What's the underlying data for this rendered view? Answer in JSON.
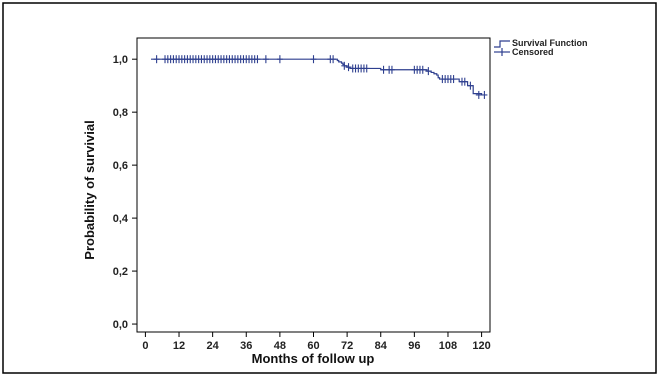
{
  "chart_data": {
    "type": "line",
    "xlabel": "Months of follow up",
    "ylabel": "Probability of survivial",
    "xlim": [
      -3,
      123
    ],
    "ylim": [
      -0.03,
      1.08
    ],
    "x_ticks": [
      "0",
      "12",
      "24",
      "36",
      "48",
      "60",
      "72",
      "84",
      "96",
      "108",
      "120"
    ],
    "x_tick_values": [
      0,
      12,
      24,
      36,
      48,
      60,
      72,
      84,
      96,
      108,
      120
    ],
    "y_ticks": [
      "0,0",
      "0,2",
      "0,4",
      "0,6",
      "0,8",
      "1,0"
    ],
    "y_tick_values": [
      0.0,
      0.2,
      0.4,
      0.6,
      0.8,
      1.0
    ],
    "legend": [
      {
        "label": "Survival Function",
        "symbol": "step"
      },
      {
        "label": "Censored",
        "symbol": "plus"
      }
    ],
    "legend_position": "top-right, outside plot",
    "color": "#2e3f8f",
    "series": [
      {
        "name": "Survival Function",
        "step": [
          [
            2,
            1.0
          ],
          [
            68,
            1.0
          ],
          [
            68.5,
            0.995
          ],
          [
            69,
            0.99
          ],
          [
            70,
            0.985
          ],
          [
            70.5,
            0.98
          ],
          [
            71,
            0.975
          ],
          [
            72,
            0.97
          ],
          [
            73,
            0.965
          ],
          [
            84,
            0.96
          ],
          [
            100.5,
            0.955
          ],
          [
            102,
            0.95
          ],
          [
            103,
            0.945
          ],
          [
            104,
            0.94
          ],
          [
            104.5,
            0.93
          ],
          [
            105,
            0.925
          ],
          [
            112,
            0.915
          ],
          [
            115,
            0.9
          ],
          [
            117,
            0.87
          ],
          [
            120,
            0.865
          ]
        ]
      },
      {
        "name": "Censored",
        "points": [
          [
            4,
            1.0
          ],
          [
            7,
            1.0
          ],
          [
            8,
            1.0
          ],
          [
            9,
            1.0
          ],
          [
            10,
            1.0
          ],
          [
            11,
            1.0
          ],
          [
            12,
            1.0
          ],
          [
            13,
            1.0
          ],
          [
            14,
            1.0
          ],
          [
            15,
            1.0
          ],
          [
            16,
            1.0
          ],
          [
            17,
            1.0
          ],
          [
            18,
            1.0
          ],
          [
            19,
            1.0
          ],
          [
            20,
            1.0
          ],
          [
            21,
            1.0
          ],
          [
            22,
            1.0
          ],
          [
            23,
            1.0
          ],
          [
            24,
            1.0
          ],
          [
            25,
            1.0
          ],
          [
            26,
            1.0
          ],
          [
            27,
            1.0
          ],
          [
            28,
            1.0
          ],
          [
            29,
            1.0
          ],
          [
            30,
            1.0
          ],
          [
            31,
            1.0
          ],
          [
            32,
            1.0
          ],
          [
            33,
            1.0
          ],
          [
            34,
            1.0
          ],
          [
            35,
            1.0
          ],
          [
            36,
            1.0
          ],
          [
            37,
            1.0
          ],
          [
            38,
            1.0
          ],
          [
            39,
            1.0
          ],
          [
            40,
            1.0
          ],
          [
            43,
            1.0
          ],
          [
            48,
            1.0
          ],
          [
            60,
            1.0
          ],
          [
            66,
            1.0
          ],
          [
            67,
            1.0
          ],
          [
            71,
            0.975
          ],
          [
            72.5,
            0.97
          ],
          [
            74,
            0.965
          ],
          [
            75,
            0.965
          ],
          [
            76,
            0.965
          ],
          [
            77,
            0.965
          ],
          [
            78,
            0.965
          ],
          [
            79,
            0.965
          ],
          [
            85,
            0.96
          ],
          [
            87,
            0.96
          ],
          [
            88,
            0.96
          ],
          [
            96,
            0.96
          ],
          [
            97,
            0.96
          ],
          [
            98,
            0.96
          ],
          [
            99,
            0.96
          ],
          [
            101,
            0.955
          ],
          [
            106,
            0.925
          ],
          [
            107,
            0.925
          ],
          [
            108,
            0.925
          ],
          [
            109,
            0.925
          ],
          [
            110,
            0.925
          ],
          [
            113,
            0.915
          ],
          [
            114,
            0.915
          ],
          [
            116,
            0.9
          ],
          [
            119,
            0.865
          ],
          [
            121,
            0.865
          ]
        ]
      }
    ]
  }
}
